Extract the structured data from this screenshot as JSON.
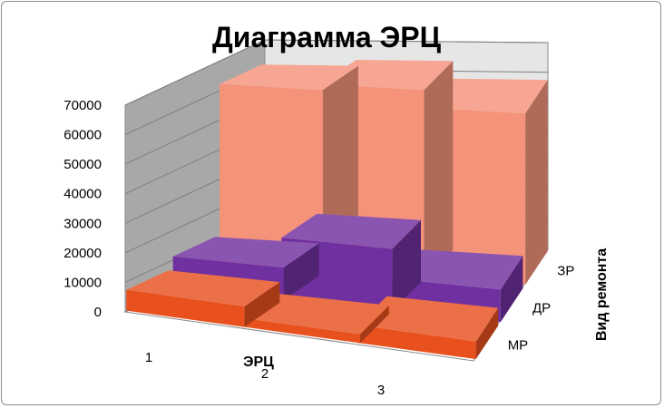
{
  "chart_data": {
    "type": "bar",
    "title": "Диаграмма ЭРЦ",
    "xlabel": "ЭРЦ",
    "zlabel": "Вид ремонта",
    "categories": [
      "1",
      "2",
      "3"
    ],
    "series": [
      {
        "name": "МР",
        "values": [
          7000,
          3000,
          6000
        ],
        "color": "#e8501e"
      },
      {
        "name": "ДР",
        "values": [
          11000,
          21000,
          11000
        ],
        "color": "#7030a0"
      },
      {
        "name": "ЗР",
        "values": [
          62000,
          64000,
          58000
        ],
        "color": "#f4937a"
      }
    ],
    "ylim": [
      0,
      70000
    ],
    "yticks": [
      0,
      10000,
      20000,
      30000,
      40000,
      50000,
      60000,
      70000
    ],
    "grid": true,
    "legend": "none"
  }
}
